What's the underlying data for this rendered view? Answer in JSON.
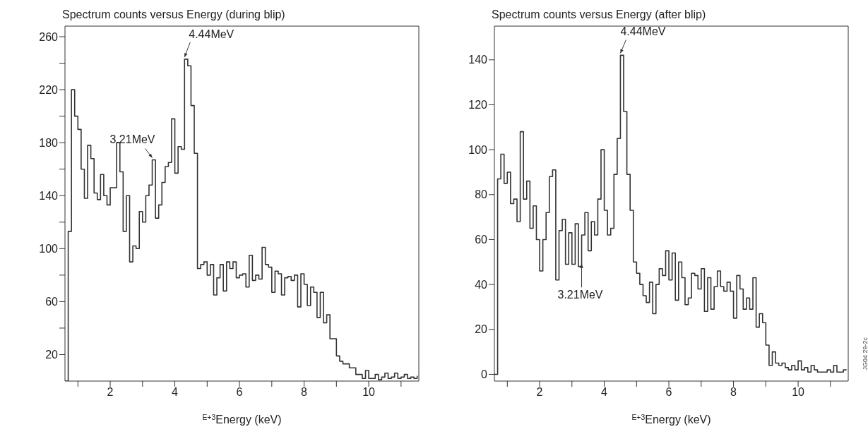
{
  "chart_data": [
    {
      "type": "step",
      "title": "Spectrum counts versus Energy (during blip)",
      "xlabel": "$^{E+3}$Energy (keV)",
      "x": [
        0.6,
        0.7,
        0.8,
        0.9,
        1.0,
        1.1,
        1.2,
        1.3,
        1.4,
        1.5,
        1.6,
        1.7,
        1.8,
        1.9,
        2.0,
        2.1,
        2.2,
        2.3,
        2.4,
        2.5,
        2.6,
        2.7,
        2.8,
        2.9,
        3.0,
        3.1,
        3.2,
        3.3,
        3.4,
        3.5,
        3.6,
        3.7,
        3.8,
        3.9,
        4.0,
        4.1,
        4.2,
        4.3,
        4.4,
        4.5,
        4.6,
        4.7,
        4.8,
        4.9,
        5.0,
        5.1,
        5.2,
        5.3,
        5.4,
        5.5,
        5.6,
        5.7,
        5.8,
        5.9,
        6.0,
        6.1,
        6.2,
        6.3,
        6.4,
        6.5,
        6.6,
        6.7,
        6.8,
        6.9,
        7.0,
        7.1,
        7.2,
        7.3,
        7.4,
        7.5,
        7.6,
        7.7,
        7.8,
        7.9,
        8.0,
        8.1,
        8.2,
        8.3,
        8.4,
        8.5,
        8.6,
        8.7,
        8.8,
        8.9,
        9.0,
        9.1,
        9.2,
        9.3,
        9.4,
        9.5,
        9.6,
        9.7,
        9.8,
        9.9,
        10.0,
        10.1,
        10.2,
        10.3,
        10.4,
        10.5,
        10.6,
        10.7,
        10.8,
        10.9,
        11.0,
        11.1,
        11.2,
        11.3,
        11.4,
        11.5
      ],
      "values": [
        0,
        113,
        220,
        200,
        190,
        160,
        138,
        178,
        168,
        142,
        137,
        156,
        140,
        133,
        146,
        146,
        180,
        158,
        113,
        140,
        90,
        102,
        100,
        128,
        120,
        140,
        148,
        167,
        123,
        133,
        150,
        162,
        165,
        198,
        157,
        177,
        175,
        243,
        238,
        208,
        172,
        85,
        88,
        90,
        80,
        88,
        65,
        78,
        88,
        68,
        90,
        85,
        90,
        78,
        80,
        81,
        71,
        95,
        76,
        80,
        77,
        101,
        88,
        86,
        67,
        83,
        81,
        65,
        78,
        79,
        76,
        80,
        56,
        81,
        73,
        57,
        71,
        67,
        48,
        67,
        44,
        50,
        32,
        32,
        19,
        15,
        13,
        13,
        10,
        10,
        5,
        5,
        2,
        8,
        2,
        2,
        5,
        1,
        3,
        6,
        2,
        3,
        6,
        2,
        3,
        5,
        2,
        3,
        2,
        4
      ],
      "color": "#333333",
      "xlim": [
        0.6,
        11.55
      ],
      "ylim": [
        0,
        268
      ],
      "xticks": [
        {
          "value": 1,
          "label": null
        },
        2,
        {
          "value": 3,
          "label": null
        },
        4,
        {
          "value": 5,
          "label": null
        },
        6,
        {
          "value": 7,
          "label": null
        },
        8,
        {
          "value": 9,
          "label": null
        },
        10,
        {
          "value": 11,
          "label": null
        }
      ],
      "yticks": [
        20,
        {
          "value": 40,
          "label": null
        },
        60,
        {
          "value": 80,
          "label": null
        },
        100,
        {
          "value": 120,
          "label": null
        },
        140,
        {
          "value": 160,
          "label": null
        },
        180,
        {
          "value": 200,
          "label": null
        },
        220,
        {
          "value": 240,
          "label": null
        },
        260
      ],
      "annotations": [
        {
          "text": "4.44MeV",
          "x": 4.3,
          "y": 243
        },
        {
          "text": "3.21MeV",
          "x": 3.3,
          "y": 167
        }
      ]
    },
    {
      "type": "step",
      "title": "Spectrum counts versus Energy (after blip)",
      "xlabel": "$^{E+3}$Energy (keV)",
      "x": [
        0.6,
        0.7,
        0.8,
        0.9,
        1.0,
        1.1,
        1.2,
        1.3,
        1.4,
        1.5,
        1.6,
        1.7,
        1.8,
        1.9,
        2.0,
        2.1,
        2.2,
        2.3,
        2.4,
        2.5,
        2.6,
        2.7,
        2.8,
        2.9,
        3.0,
        3.1,
        3.2,
        3.3,
        3.4,
        3.5,
        3.6,
        3.7,
        3.8,
        3.9,
        4.0,
        4.1,
        4.2,
        4.3,
        4.4,
        4.5,
        4.6,
        4.7,
        4.8,
        4.9,
        5.0,
        5.1,
        5.2,
        5.3,
        5.4,
        5.5,
        5.6,
        5.7,
        5.8,
        5.9,
        6.0,
        6.1,
        6.2,
        6.3,
        6.4,
        6.5,
        6.6,
        6.7,
        6.8,
        6.9,
        7.0,
        7.1,
        7.2,
        7.3,
        7.4,
        7.5,
        7.6,
        7.7,
        7.8,
        7.9,
        8.0,
        8.1,
        8.2,
        8.3,
        8.4,
        8.5,
        8.6,
        8.7,
        8.8,
        8.9,
        9.0,
        9.1,
        9.2,
        9.3,
        9.4,
        9.5,
        9.6,
        9.7,
        9.8,
        9.9,
        10.0,
        10.1,
        10.2,
        10.3,
        10.4,
        10.5,
        10.6,
        10.7,
        10.8,
        10.9,
        11.0,
        11.1,
        11.2,
        11.3,
        11.4,
        11.5
      ],
      "values": [
        0,
        87,
        98,
        85,
        90,
        76,
        78,
        68,
        108,
        78,
        86,
        65,
        75,
        60,
        46,
        60,
        72,
        88,
        91,
        42,
        64,
        69,
        49,
        63,
        49,
        67,
        48,
        62,
        72,
        55,
        68,
        62,
        78,
        100,
        73,
        62,
        65,
        89,
        105,
        142,
        117,
        89,
        73,
        50,
        45,
        40,
        35,
        32,
        41,
        27,
        40,
        47,
        44,
        55,
        42,
        54,
        33,
        50,
        43,
        31,
        34,
        45,
        44,
        38,
        47,
        28,
        43,
        29,
        39,
        46,
        39,
        37,
        41,
        37,
        25,
        44,
        38,
        29,
        34,
        29,
        43,
        21,
        27,
        23,
        13,
        4,
        10,
        5,
        4,
        5,
        3,
        2,
        4,
        2,
        6,
        2,
        3,
        1,
        4,
        2,
        1,
        1,
        1,
        2,
        1,
        4,
        1,
        1,
        2,
        2
      ],
      "color": "#333333",
      "xlim": [
        0.6,
        11.55
      ],
      "ylim": [
        -3,
        155
      ],
      "xticks": [
        {
          "value": 1,
          "label": null
        },
        2,
        {
          "value": 3,
          "label": null
        },
        4,
        {
          "value": 5,
          "label": null
        },
        6,
        {
          "value": 7,
          "label": null
        },
        8,
        {
          "value": 9,
          "label": null
        },
        10,
        {
          "value": 11,
          "label": null
        }
      ],
      "yticks": [
        0,
        20,
        40,
        60,
        80,
        100,
        120,
        140
      ],
      "annotations": [
        {
          "text": "4.44MeV",
          "x": 4.5,
          "y": 142
        },
        {
          "text": "3.21MeV",
          "x": 3.3,
          "y": 50
        },
        "JG04 29-2c"
      ]
    }
  ]
}
